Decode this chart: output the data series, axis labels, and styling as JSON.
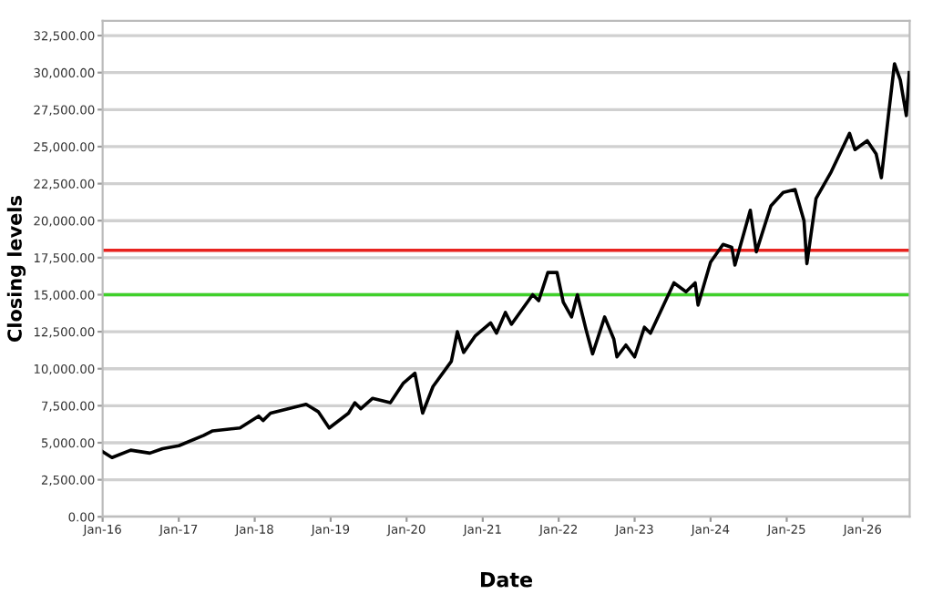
{
  "chart_data": {
    "type": "line",
    "xlabel": "Date",
    "ylabel": "Closing levels",
    "x": [
      "2016-01-01",
      "2016-02-15",
      "2016-05-15",
      "2016-08-15",
      "2016-10-15",
      "2017-01-01",
      "2017-05-01",
      "2017-06-13",
      "2017-10-22",
      "2018-01-20",
      "2018-02-10",
      "2018-03-18",
      "2018-09-05",
      "2018-11-02",
      "2018-12-25",
      "2019-03-28",
      "2019-04-27",
      "2019-05-26",
      "2019-07-22",
      "2019-10-15",
      "2019-12-15",
      "2020-02-10",
      "2020-03-18",
      "2020-05-07",
      "2020-08-03",
      "2020-09-01",
      "2020-10-01",
      "2020-11-25",
      "2021-02-08",
      "2021-03-08",
      "2021-04-20",
      "2021-05-19",
      "2021-08-29",
      "2021-09-27",
      "2021-11-10",
      "2021-12-24",
      "2022-01-23",
      "2022-03-04",
      "2022-04-01",
      "2022-05-15",
      "2022-06-13",
      "2022-08-10",
      "2022-09-23",
      "2022-10-08",
      "2022-11-20",
      "2023-01-01",
      "2023-02-17",
      "2023-03-18",
      "2023-05-27",
      "2023-07-09",
      "2023-09-05",
      "2023-10-19",
      "2023-11-02",
      "2024-01-01",
      "2024-03-01",
      "2024-04-12",
      "2024-04-27",
      "2024-07-10",
      "2024-08-08",
      "2024-10-17",
      "2024-12-15",
      "2025-02-10",
      "2025-03-25",
      "2025-04-08",
      "2025-05-22",
      "2025-08-03",
      "2025-10-30",
      "2025-11-25",
      "2026-01-23",
      "2026-03-07",
      "2026-04-01",
      "2026-05-04",
      "2026-06-03",
      "2026-07-01",
      "2026-07-30",
      "2026-08-13"
    ],
    "series": [
      {
        "color": "#000000",
        "values": [
          4400,
          4000,
          4500,
          4300,
          4600,
          4800,
          5500,
          5800,
          6000,
          6800,
          6500,
          7000,
          7600,
          7100,
          6000,
          7000,
          7700,
          7300,
          8000,
          7700,
          9000,
          9700,
          7000,
          8800,
          10500,
          12500,
          11100,
          12200,
          13100,
          12400,
          13800,
          13000,
          15000,
          14600,
          16500,
          16500,
          14500,
          13500,
          15000,
          12500,
          11000,
          13500,
          12000,
          10800,
          11600,
          10800,
          12800,
          12400,
          14500,
          15800,
          15200,
          15800,
          14300,
          17200,
          18400,
          18200,
          17000,
          20700,
          17900,
          21000,
          21900,
          22100,
          20000,
          17100,
          21500,
          23300,
          25900,
          24800,
          25400,
          24500,
          22900,
          27000,
          30600,
          29500,
          27100,
          30000
        ]
      }
    ],
    "xlim": [
      "2016-01-01",
      "2026-08-15"
    ],
    "xticks": [
      {
        "value": "2016-01-01",
        "label": "Jan-16"
      },
      {
        "value": "2017-01-01",
        "label": "Jan-17"
      },
      {
        "value": "2018-01-01",
        "label": "Jan-18"
      },
      {
        "value": "2019-01-01",
        "label": "Jan-19"
      },
      {
        "value": "2020-01-01",
        "label": "Jan-20"
      },
      {
        "value": "2021-01-01",
        "label": "Jan-21"
      },
      {
        "value": "2022-01-01",
        "label": "Jan-22"
      },
      {
        "value": "2023-01-01",
        "label": "Jan-23"
      },
      {
        "value": "2024-01-01",
        "label": "Jan-24"
      },
      {
        "value": "2025-01-01",
        "label": "Jan-25"
      },
      {
        "value": "2026-01-01",
        "label": "Jan-26"
      }
    ],
    "ylim": [
      0,
      33500
    ],
    "yticks": [
      {
        "value": 0,
        "label": "0.00"
      },
      {
        "value": 2500,
        "label": "2,500.00"
      },
      {
        "value": 5000,
        "label": "5,000.00"
      },
      {
        "value": 7500,
        "label": "7,500.00"
      },
      {
        "value": 10000,
        "label": "10,000.00"
      },
      {
        "value": 12500,
        "label": "12,500.00"
      },
      {
        "value": 15000,
        "label": "15,000.00"
      },
      {
        "value": 17500,
        "label": "17,500.00"
      },
      {
        "value": 20000,
        "label": "20,000.00"
      },
      {
        "value": 22500,
        "label": "22,500.00"
      },
      {
        "value": 25000,
        "label": "25,000.00"
      },
      {
        "value": 27500,
        "label": "27,500.00"
      },
      {
        "value": 30000,
        "label": "30,000.00"
      },
      {
        "value": 32500,
        "label": "32,500.00"
      }
    ],
    "grid": "y",
    "line_style": "solid",
    "ref_lines": [
      {
        "axis": "y",
        "value": 18000,
        "color": "#e8231f"
      },
      {
        "axis": "y",
        "value": 15000,
        "color": "#3fd02a"
      }
    ]
  }
}
